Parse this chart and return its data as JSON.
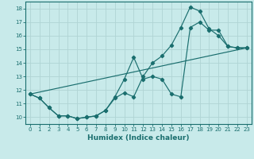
{
  "xlabel": "Humidex (Indice chaleur)",
  "ylabel": "",
  "bg_color": "#c8eaea",
  "grid_color": "#b0d4d4",
  "line_color": "#1a6e6e",
  "xlim": [
    -0.5,
    23.5
  ],
  "ylim": [
    9.5,
    18.5
  ],
  "xticks": [
    0,
    1,
    2,
    3,
    4,
    5,
    6,
    7,
    8,
    9,
    10,
    11,
    12,
    13,
    14,
    15,
    16,
    17,
    18,
    19,
    20,
    21,
    22,
    23
  ],
  "yticks": [
    10,
    11,
    12,
    13,
    14,
    15,
    16,
    17,
    18
  ],
  "line1_x": [
    0,
    1,
    2,
    3,
    4,
    5,
    6,
    7,
    8,
    9,
    10,
    11,
    12,
    13,
    14,
    15,
    16,
    17,
    18,
    19,
    20,
    21,
    22,
    23
  ],
  "line1_y": [
    11.7,
    11.4,
    10.7,
    10.1,
    10.1,
    9.9,
    10.0,
    10.1,
    10.5,
    11.4,
    11.8,
    11.5,
    13.0,
    14.0,
    14.5,
    15.3,
    16.6,
    18.1,
    17.8,
    16.5,
    16.0,
    15.2,
    15.1,
    15.1
  ],
  "line2_x": [
    0,
    1,
    2,
    3,
    4,
    5,
    6,
    7,
    8,
    9,
    10,
    11,
    12,
    13,
    14,
    15,
    16,
    17,
    18,
    19,
    20,
    21,
    22,
    23
  ],
  "line2_y": [
    11.7,
    11.4,
    10.7,
    10.1,
    10.1,
    9.9,
    10.0,
    10.1,
    10.5,
    11.5,
    12.8,
    14.4,
    12.8,
    13.0,
    12.8,
    11.7,
    11.5,
    16.6,
    17.0,
    16.4,
    16.4,
    15.2,
    15.1,
    15.1
  ],
  "line3_x": [
    0,
    23
  ],
  "line3_y": [
    11.7,
    15.1
  ]
}
